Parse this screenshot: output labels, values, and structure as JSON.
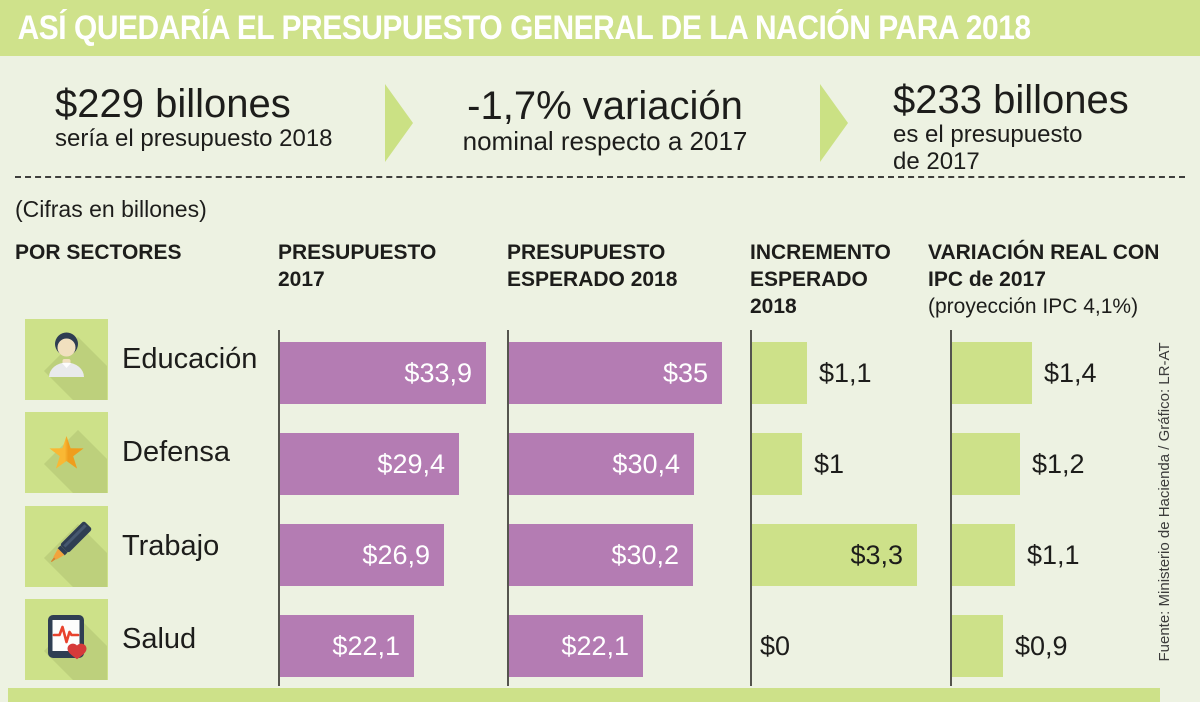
{
  "title": "ASÍ QUEDARÍA EL PRESUPUESTO GENERAL DE LA NACIÓN PARA 2018",
  "summary": {
    "step1_value": "$229 billones",
    "step1_caption": "sería el presupuesto 2018",
    "step2_value": "-1,7% variación",
    "step2_caption": "nominal respecto a 2017",
    "step3_value": "$233 billones",
    "step3_caption": "es el presupuesto\nde 2017"
  },
  "units_note": "(Cifras en billones)",
  "source_credit": "Fuente: Ministerio de Hacienda / Gráfico: LR-AT",
  "chart_data": {
    "type": "bar",
    "orientation": "horizontal",
    "sector_column_header": "POR SECTORES",
    "categories": [
      "Educación",
      "Defensa",
      "Trabajo",
      "Salud"
    ],
    "category_icons": [
      "student-icon",
      "star-icon",
      "marker-icon",
      "health-monitor-icon"
    ],
    "series": [
      {
        "key": "presupuesto-2017",
        "header": "PRESUPUESTO\n2017",
        "color": "#b47cb3",
        "label_color": "#ffffff",
        "values": [
          33.9,
          29.4,
          26.9,
          22.1
        ],
        "labels": [
          "$33,9",
          "$29,4",
          "$26,9",
          "$22,1"
        ]
      },
      {
        "key": "presupuesto-esperado-2018",
        "header": "PRESUPUESTO\nESPERADO 2018",
        "color": "#b47cb3",
        "label_color": "#ffffff",
        "values": [
          35,
          30.4,
          30.2,
          22.1
        ],
        "labels": [
          "$35",
          "$30,4",
          "$30,2",
          "$22,1"
        ]
      },
      {
        "key": "incremento-esperado-2018",
        "header": "INCREMENTO\nESPERADO\n2018",
        "color": "#cde189",
        "label_color": "#1d1d1b",
        "values": [
          1.1,
          1,
          3.3,
          0
        ],
        "labels": [
          "$1,1",
          "$1",
          "$3,3",
          "$0"
        ]
      },
      {
        "key": "variacion-real-ipc",
        "header": "VARIACIÓN REAL CON\nIPC de 2017",
        "subheader": "(proyección IPC 4,1%)",
        "color": "#cde189",
        "label_color": "#1d1d1b",
        "values": [
          1.4,
          1.2,
          1.1,
          0.9
        ],
        "labels": [
          "$1,4",
          "$1,2",
          "$1,1",
          "$0,9"
        ]
      }
    ],
    "colors": {
      "bar_purple": "#b47cb3",
      "bar_green": "#cde189",
      "accent_green": "#cfe28b",
      "arrow_green": "#cbe184",
      "background": "#edf2e2",
      "text_dark": "#1d1d1b"
    }
  }
}
